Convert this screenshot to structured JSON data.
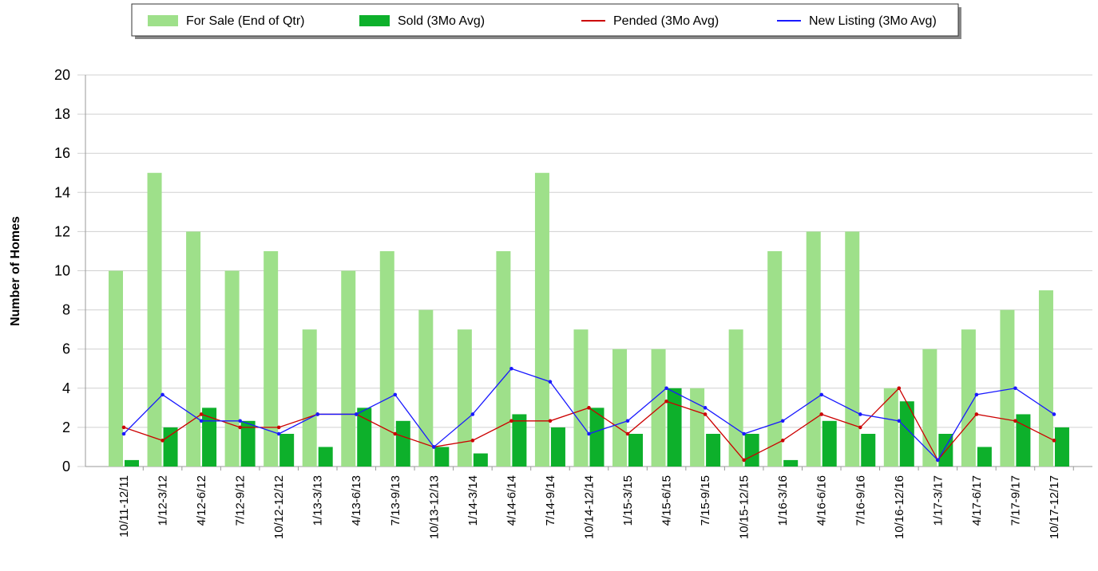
{
  "chart_data": {
    "type": "bar",
    "y_label": "Number of Homes",
    "categories": [
      "10/11-12/11",
      "1/12-3/12",
      "4/12-6/12",
      "7/12-9/12",
      "10/12-12/12",
      "1/13-3/13",
      "4/13-6/13",
      "7/13-9/13",
      "10/13-12/13",
      "1/14-3/14",
      "4/14-6/14",
      "7/14-9/14",
      "10/14-12/14",
      "1/15-3/15",
      "4/15-6/15",
      "7/15-9/15",
      "10/15-12/15",
      "1/16-3/16",
      "4/16-6/16",
      "7/16-9/16",
      "10/16-12/16",
      "1/17-3/17",
      "4/17-6/17",
      "7/17-9/17",
      "10/17-12/17"
    ],
    "series": [
      {
        "name": "For Sale (End of Qtr)",
        "type": "bar",
        "color": "#9ee08a",
        "values": [
          10,
          15,
          12,
          10,
          11,
          7,
          10,
          11,
          8,
          7,
          11,
          15,
          7,
          6,
          6,
          4,
          7,
          11,
          12,
          12,
          4,
          6,
          7,
          8,
          9
        ]
      },
      {
        "name": "Sold (3Mo Avg)",
        "type": "bar",
        "color": "#0db02b",
        "values": [
          0.33,
          2,
          3,
          2.33,
          1.67,
          1,
          3,
          2.33,
          1,
          0.67,
          2.67,
          2,
          3,
          1.67,
          4,
          1.67,
          1.67,
          0.33,
          2.33,
          1.67,
          3.33,
          1.67,
          1,
          2.67,
          2
        ]
      },
      {
        "name": "Pended (3Mo Avg)",
        "type": "line",
        "color": "#cc0000",
        "values": [
          2,
          1.33,
          2.67,
          2,
          2,
          2.67,
          2.67,
          1.67,
          1,
          1.33,
          2.33,
          2.33,
          3,
          1.67,
          3.33,
          2.67,
          0.33,
          1.33,
          2.67,
          2,
          4,
          0.33,
          2.67,
          2.33,
          1.33
        ]
      },
      {
        "name": "New Listing (3Mo Avg)",
        "type": "line",
        "color": "#1a1aff",
        "values": [
          1.67,
          3.67,
          2.33,
          2.33,
          1.67,
          2.67,
          2.67,
          3.67,
          1,
          2.67,
          5,
          4.33,
          1.67,
          2.33,
          4,
          3,
          1.67,
          2.33,
          3.67,
          2.67,
          2.33,
          0.33,
          3.67,
          4,
          2.67
        ]
      }
    ],
    "ylim": [
      0,
      20
    ],
    "yticks": [
      0,
      2,
      4,
      6,
      8,
      10,
      12,
      14,
      16,
      18,
      20
    ],
    "grid": true
  }
}
